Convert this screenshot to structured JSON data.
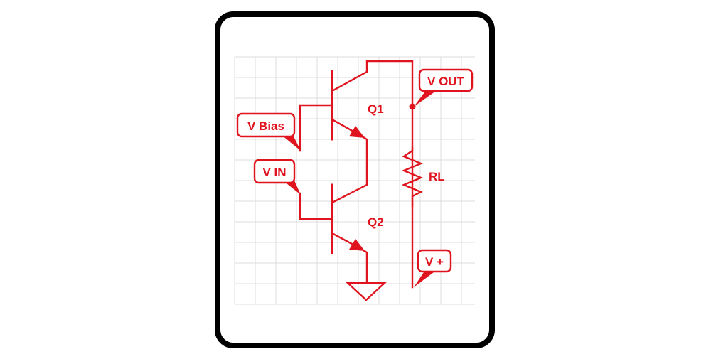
{
  "labels": {
    "v_out": "V OUT",
    "v_bias": "V Bias",
    "v_in": "V IN",
    "v_plus": "V +",
    "q1": "Q1",
    "q2": "Q2",
    "rl": "RL"
  },
  "colors": {
    "ink": "#e0141e",
    "frame": "#000000",
    "grid": "#dcdcdc",
    "background": "#ffffff"
  }
}
